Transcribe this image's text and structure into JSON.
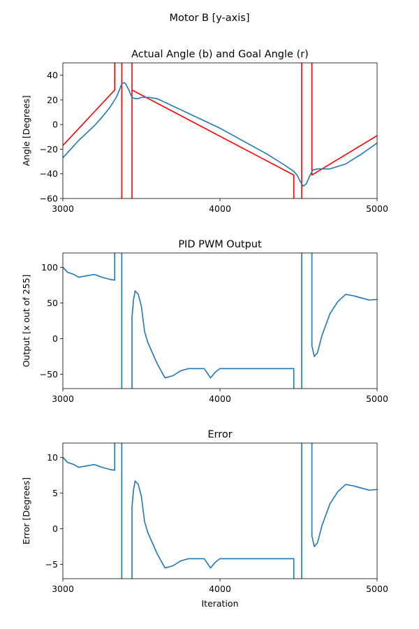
{
  "figure": {
    "suptitle": "Motor B [y-axis]"
  },
  "colors": {
    "actual": "#1f77b4",
    "goal": "#ff0000",
    "series": "#1f77b4"
  },
  "chart_data": [
    {
      "type": "line",
      "title": "Actual Angle (b) and Goal Angle (r)",
      "xlabel": "",
      "ylabel": "Angle [Degrees]",
      "xlim": [
        3000,
        5000
      ],
      "ylim": [
        -60,
        50
      ],
      "xticks": [
        3000,
        4000,
        5000
      ],
      "yticks": [
        -60,
        -40,
        -20,
        0,
        20,
        40
      ],
      "grid": false,
      "series": [
        {
          "color_key": "goal",
          "x": [
            3000,
            3330,
            3330,
            3330,
            3375,
            3375,
            3375,
            3440,
            3440,
            3440,
            4470,
            4470,
            4470,
            4520,
            4520,
            4520,
            4585,
            4585,
            4585,
            5000
          ],
          "y": [
            -17,
            28,
            28,
            60,
            60,
            -65,
            -65,
            -65,
            60,
            28,
            -41,
            -41,
            -65,
            -65,
            60,
            60,
            60,
            -41,
            -41,
            -9
          ]
        },
        {
          "color_key": "actual",
          "x": [
            3000,
            3050,
            3100,
            3150,
            3200,
            3250,
            3300,
            3340,
            3360,
            3375,
            3390,
            3400,
            3420,
            3440,
            3460,
            3480,
            3500,
            3550,
            3600,
            3650,
            3700,
            3800,
            3900,
            4000,
            4100,
            4200,
            4300,
            4400,
            4470,
            4490,
            4510,
            4530,
            4550,
            4570,
            4590,
            4620,
            4700,
            4800,
            4900,
            5000
          ],
          "y": [
            -27,
            -20,
            -13,
            -7,
            -1,
            6,
            14,
            22,
            28,
            33,
            34,
            33,
            28,
            22,
            21,
            21,
            22,
            22,
            21,
            18,
            15,
            9,
            3,
            -3,
            -10,
            -17,
            -24,
            -32,
            -38,
            -41,
            -46,
            -50,
            -48,
            -42,
            -37,
            -36,
            -36,
            -32,
            -24,
            -15
          ]
        }
      ]
    },
    {
      "type": "line",
      "title": "PID PWM Output",
      "xlabel": "",
      "ylabel": "Output [x out of 255]",
      "xlim": [
        3000,
        5000
      ],
      "ylim": [
        -70,
        120
      ],
      "xticks": [
        3000,
        4000,
        5000
      ],
      "yticks": [
        -50,
        0,
        50,
        100
      ],
      "grid": false,
      "series": [
        {
          "color_key": "series",
          "x": [
            3000,
            3030,
            3070,
            3100,
            3150,
            3200,
            3250,
            3300,
            3330,
            3330,
            3375,
            3375,
            3440,
            3440,
            3450,
            3460,
            3480,
            3500,
            3520,
            3540,
            3600,
            3650,
            3700,
            3750,
            3800,
            3900,
            3940,
            3970,
            4000,
            4100,
            4200,
            4300,
            4400,
            4470,
            4470,
            4520,
            4520,
            4585,
            4585,
            4600,
            4620,
            4650,
            4700,
            4750,
            4800,
            4850,
            4900,
            4950,
            5000
          ],
          "y": [
            100,
            93,
            90,
            86,
            88,
            90,
            86,
            83,
            82,
            130,
            130,
            -80,
            -80,
            30,
            55,
            67,
            62,
            45,
            10,
            -5,
            -35,
            -55,
            -52,
            -45,
            -42,
            -42,
            -55,
            -47,
            -42,
            -42,
            -42,
            -42,
            -42,
            -42,
            -80,
            -80,
            130,
            130,
            -10,
            -25,
            -20,
            5,
            35,
            52,
            62,
            60,
            57,
            54,
            55
          ]
        }
      ]
    },
    {
      "type": "line",
      "title": "Error",
      "xlabel": "Iteration",
      "ylabel": "Error [Degrees]",
      "xlim": [
        3000,
        5000
      ],
      "ylim": [
        -7,
        12
      ],
      "xticks": [
        3000,
        4000,
        5000
      ],
      "yticks": [
        -5,
        0,
        5,
        10
      ],
      "grid": false,
      "series": [
        {
          "color_key": "series",
          "x": [
            3000,
            3030,
            3070,
            3100,
            3150,
            3200,
            3250,
            3300,
            3330,
            3330,
            3375,
            3375,
            3440,
            3440,
            3450,
            3460,
            3480,
            3500,
            3520,
            3540,
            3600,
            3650,
            3700,
            3750,
            3800,
            3900,
            3940,
            3970,
            4000,
            4100,
            4200,
            4300,
            4400,
            4470,
            4470,
            4520,
            4520,
            4585,
            4585,
            4600,
            4620,
            4650,
            4700,
            4750,
            4800,
            4850,
            4900,
            4950,
            5000
          ],
          "y": [
            10,
            9.3,
            9,
            8.6,
            8.8,
            9,
            8.6,
            8.3,
            8.2,
            13,
            13,
            -8,
            -8,
            3,
            5.5,
            6.7,
            6.2,
            4.5,
            1,
            -0.5,
            -3.5,
            -5.5,
            -5.2,
            -4.5,
            -4.2,
            -4.2,
            -5.5,
            -4.7,
            -4.2,
            -4.2,
            -4.2,
            -4.2,
            -4.2,
            -4.2,
            -8,
            -8,
            13,
            13,
            -1,
            -2.5,
            -2,
            0.5,
            3.5,
            5.2,
            6.2,
            6,
            5.7,
            5.4,
            5.5
          ]
        }
      ]
    }
  ]
}
